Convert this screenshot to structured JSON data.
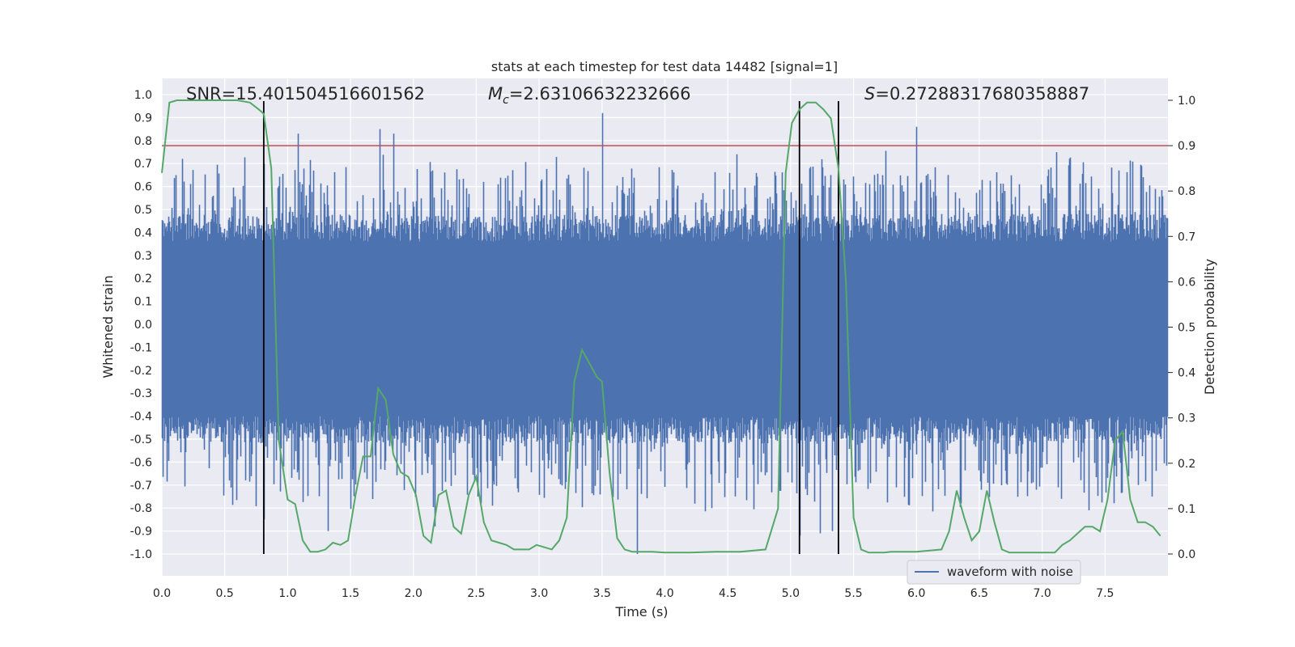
{
  "chart_data": {
    "type": "line",
    "title": "stats at each timestep for test data 14482 [signal=1]",
    "xlabel": "Time (s)",
    "ylabel_left": "Whitened strain",
    "ylabel_right": "Detection probability",
    "xlim": [
      0.0,
      8.0
    ],
    "ylim_left": [
      -1.0,
      1.0
    ],
    "ylim_right": [
      0.0,
      1.0
    ],
    "x_ticks": [
      "0.0",
      "0.5",
      "1.0",
      "1.5",
      "2.0",
      "2.5",
      "3.0",
      "3.5",
      "4.0",
      "4.5",
      "5.0",
      "5.5",
      "6.0",
      "6.5",
      "7.0",
      "7.5"
    ],
    "y_left_ticks": [
      "1.0",
      "0.9",
      "0.8",
      "0.7",
      "0.6",
      "0.5",
      "0.4",
      "0.3",
      "0.2",
      "0.1",
      "0.0",
      "-0.1",
      "-0.2",
      "-0.3",
      "-0.4",
      "-0.5",
      "-0.6",
      "-0.7",
      "-0.8",
      "-0.9",
      "-1.0"
    ],
    "y_right_ticks": [
      "1.0",
      "0.9",
      "0.8",
      "0.7",
      "0.6",
      "0.5",
      "0.4",
      "0.3",
      "0.2",
      "0.1",
      "0.0"
    ],
    "annotations": {
      "snr": "SNR=15.401504516601562",
      "mc_symbol": "M",
      "mc_sub": "c",
      "mc_value": "=2.63106632232666",
      "s_symbol": "S",
      "s_value": "=0.27288317680358887"
    },
    "threshold": {
      "value": 0.9,
      "axis": "right",
      "color": "#c44e52"
    },
    "vertical_lines_x": [
      0.81,
      5.07,
      5.38
    ],
    "legend": {
      "label": "waveform with noise",
      "placement": "lower right"
    },
    "series": [
      {
        "name": "waveform with noise",
        "axis": "left",
        "color": "#4c72b0",
        "sample_rate": 2048,
        "core_band": [
          -0.42,
          0.38
        ],
        "spike_peaks": [
          {
            "x": 0.81,
            "y": -0.85
          },
          {
            "x": 1.08,
            "y": 0.83
          },
          {
            "x": 1.32,
            "y": -0.9
          },
          {
            "x": 1.73,
            "y": 0.85
          },
          {
            "x": 1.84,
            "y": 0.83
          },
          {
            "x": 2.17,
            "y": -0.88
          },
          {
            "x": 3.5,
            "y": 0.92
          },
          {
            "x": 3.78,
            "y": -1.0
          },
          {
            "x": 4.37,
            "y": -0.8
          },
          {
            "x": 5.07,
            "y": -0.92
          },
          {
            "x": 5.23,
            "y": -0.91
          },
          {
            "x": 5.33,
            "y": -0.9
          },
          {
            "x": 6.0,
            "y": 0.86
          },
          {
            "x": 6.35,
            "y": -0.78
          },
          {
            "x": 7.15,
            "y": -0.76
          },
          {
            "x": 7.37,
            "y": -0.81
          }
        ]
      },
      {
        "name": "detection probability",
        "axis": "right",
        "color": "#55a868",
        "x": [
          0.0,
          0.06,
          0.12,
          0.2,
          0.3,
          0.4,
          0.5,
          0.6,
          0.7,
          0.77,
          0.81,
          0.87,
          0.93,
          1.0,
          1.06,
          1.12,
          1.18,
          1.24,
          1.3,
          1.36,
          1.42,
          1.48,
          1.54,
          1.6,
          1.66,
          1.72,
          1.78,
          1.84,
          1.9,
          1.96,
          2.02,
          2.08,
          2.14,
          2.2,
          2.26,
          2.32,
          2.38,
          2.44,
          2.5,
          2.56,
          2.62,
          2.68,
          2.74,
          2.8,
          2.86,
          2.92,
          2.98,
          3.04,
          3.1,
          3.16,
          3.22,
          3.28,
          3.34,
          3.4,
          3.46,
          3.5,
          3.56,
          3.62,
          3.68,
          3.74,
          3.8,
          3.9,
          4.0,
          4.2,
          4.4,
          4.6,
          4.8,
          4.9,
          4.96,
          5.01,
          5.07,
          5.13,
          5.2,
          5.26,
          5.32,
          5.38,
          5.44,
          5.5,
          5.56,
          5.62,
          5.68,
          5.74,
          5.8,
          6.0,
          6.2,
          6.26,
          6.32,
          6.38,
          6.44,
          6.5,
          6.56,
          6.62,
          6.68,
          6.74,
          6.8,
          7.0,
          7.1,
          7.16,
          7.22,
          7.28,
          7.34,
          7.4,
          7.46,
          7.52,
          7.58,
          7.64,
          7.7,
          7.76,
          7.82,
          7.88,
          7.94
        ],
        "y": [
          0.84,
          0.995,
          1.0,
          1.0,
          1.0,
          1.0,
          1.0,
          1.0,
          0.995,
          0.98,
          0.97,
          0.85,
          0.25,
          0.12,
          0.11,
          0.03,
          0.005,
          0.005,
          0.01,
          0.025,
          0.02,
          0.03,
          0.13,
          0.215,
          0.215,
          0.365,
          0.34,
          0.22,
          0.18,
          0.17,
          0.13,
          0.04,
          0.025,
          0.13,
          0.14,
          0.06,
          0.045,
          0.13,
          0.17,
          0.07,
          0.03,
          0.025,
          0.02,
          0.01,
          0.01,
          0.01,
          0.02,
          0.015,
          0.01,
          0.03,
          0.08,
          0.38,
          0.45,
          0.42,
          0.39,
          0.38,
          0.18,
          0.035,
          0.01,
          0.005,
          0.005,
          0.005,
          0.003,
          0.003,
          0.005,
          0.005,
          0.01,
          0.1,
          0.84,
          0.95,
          0.98,
          0.995,
          0.995,
          0.98,
          0.96,
          0.85,
          0.6,
          0.08,
          0.01,
          0.003,
          0.003,
          0.003,
          0.005,
          0.005,
          0.01,
          0.05,
          0.14,
          0.08,
          0.03,
          0.05,
          0.14,
          0.07,
          0.01,
          0.003,
          0.003,
          0.003,
          0.003,
          0.02,
          0.03,
          0.045,
          0.06,
          0.06,
          0.05,
          0.12,
          0.25,
          0.27,
          0.12,
          0.07,
          0.07,
          0.06,
          0.04
        ]
      }
    ]
  }
}
